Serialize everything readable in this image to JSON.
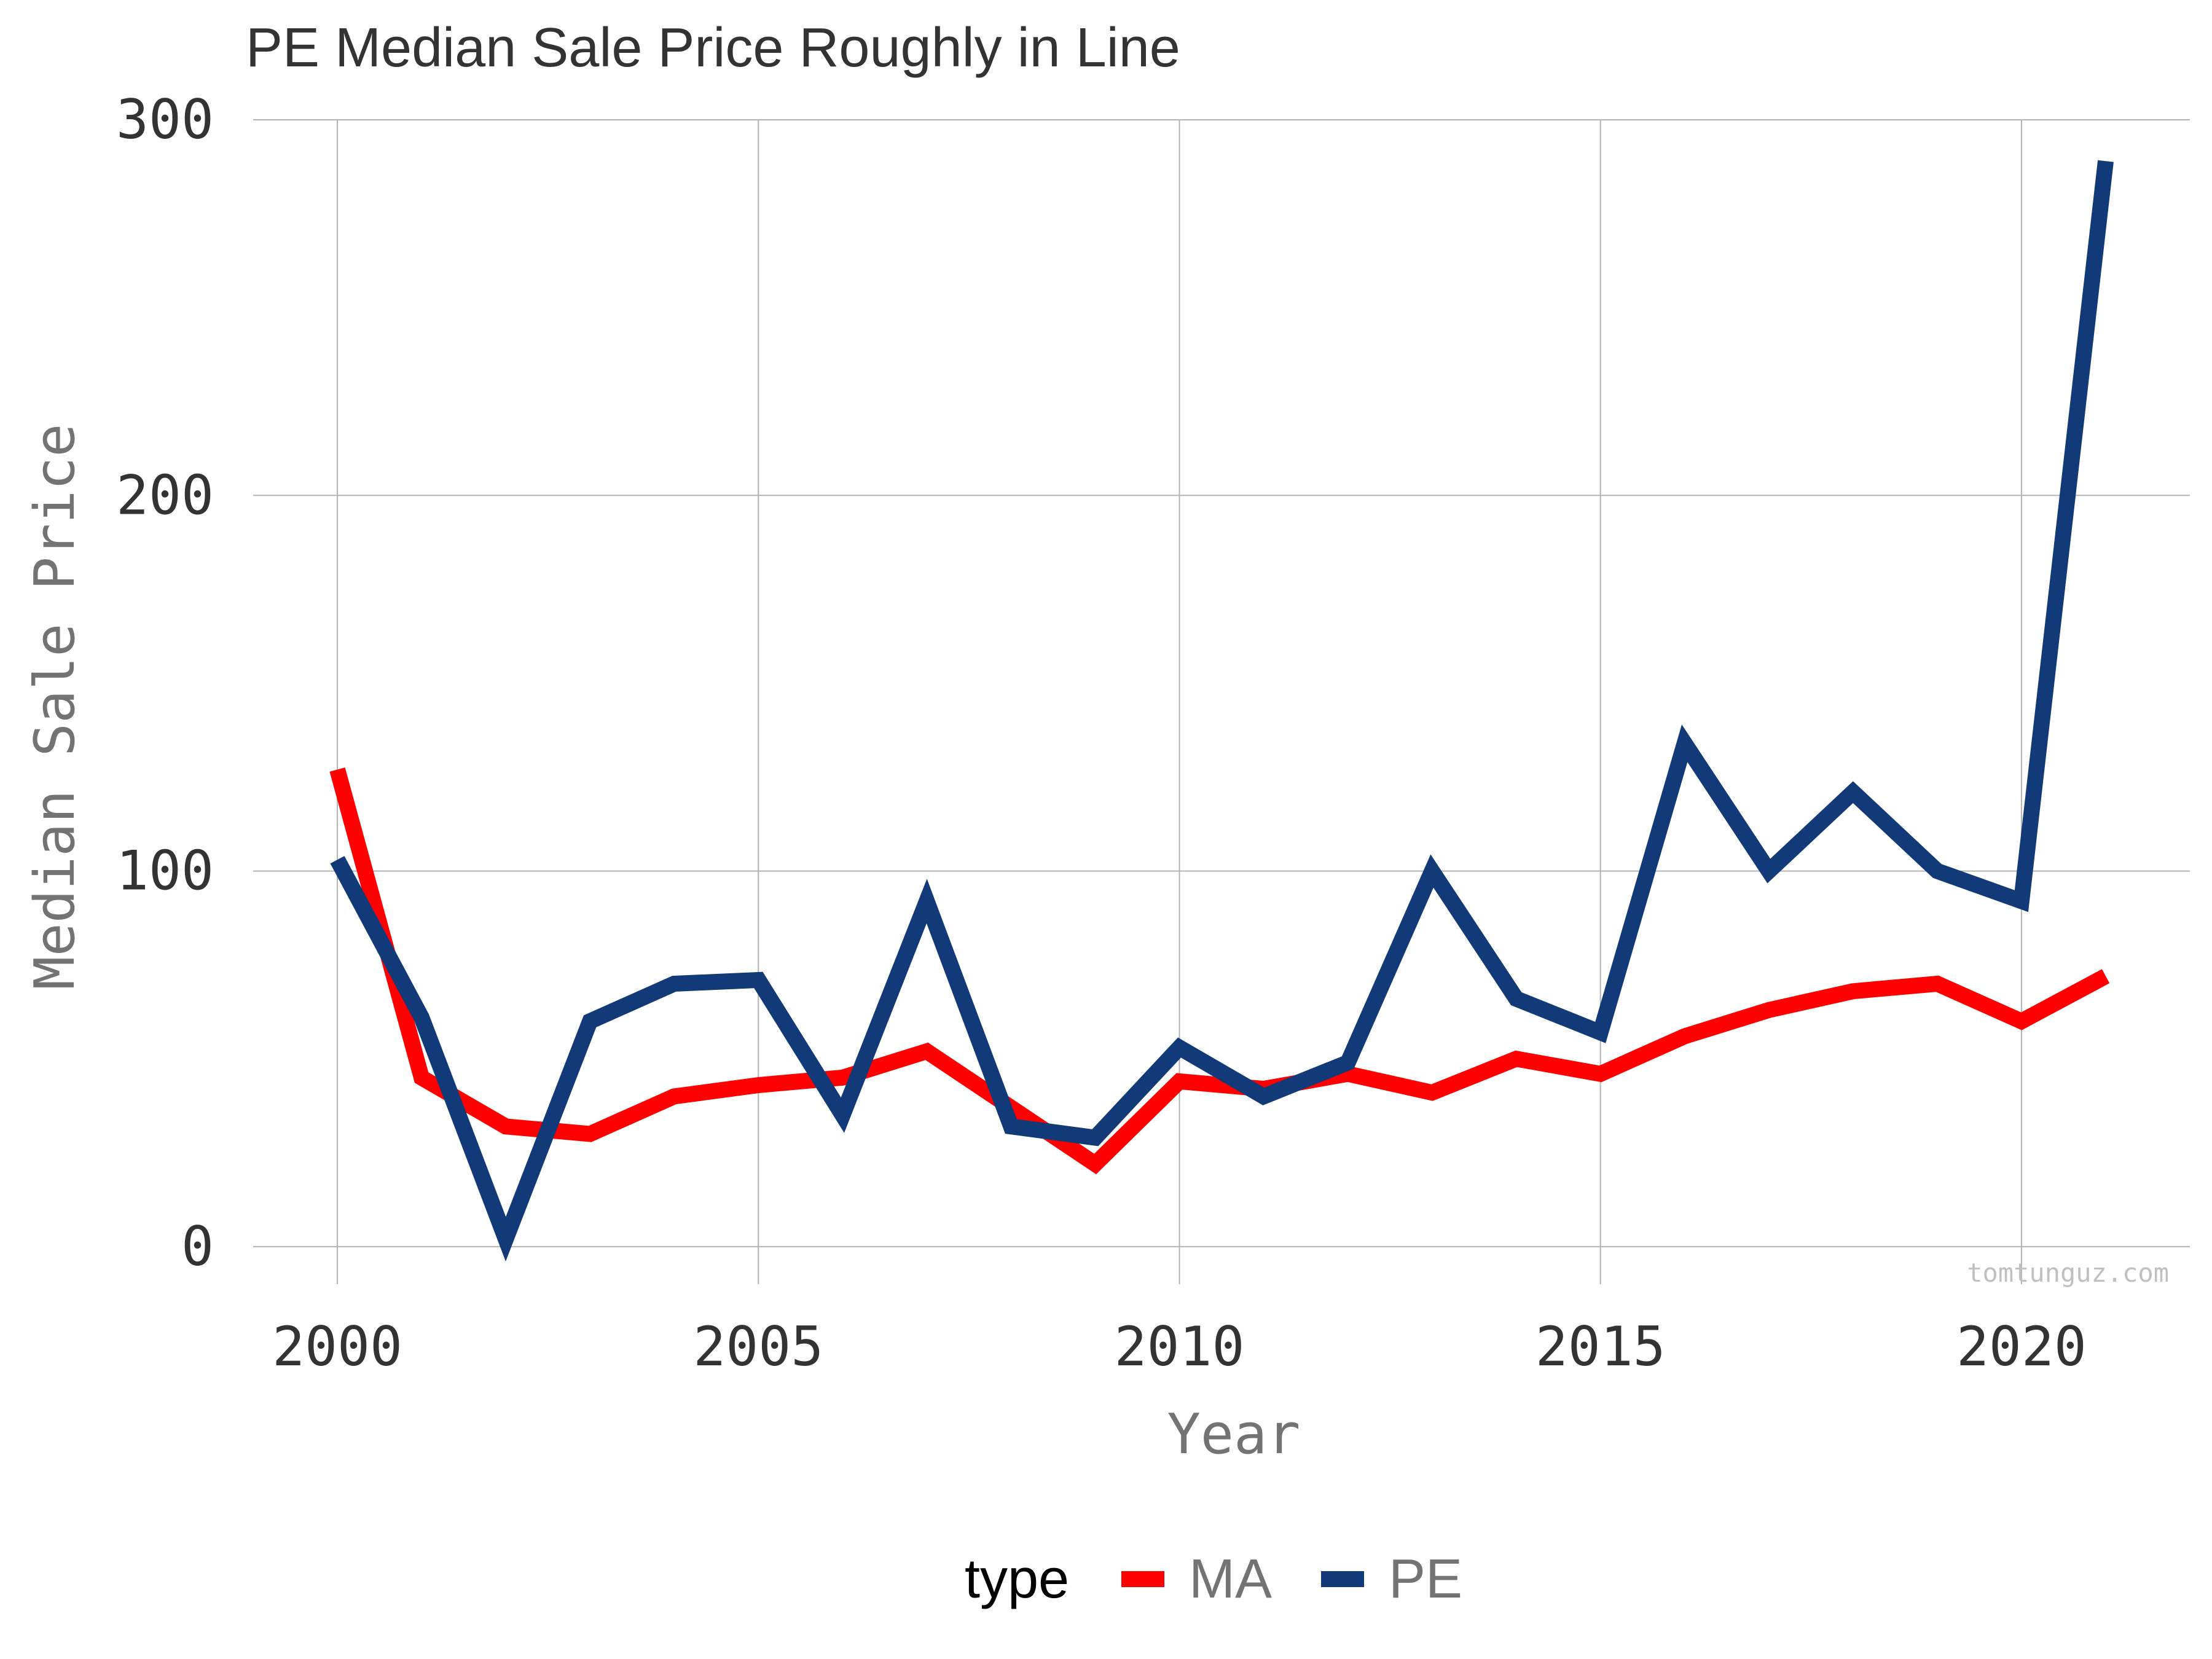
{
  "chart_data": {
    "type": "line",
    "title": "PE Median Sale Price Roughly in Line",
    "xlabel": "Year",
    "ylabel": "Median Sale Price",
    "xlim": [
      1999,
      2022
    ],
    "ylim": [
      -10,
      300
    ],
    "x_ticks": [
      2000,
      2005,
      2010,
      2015,
      2020
    ],
    "y_ticks": [
      0,
      100,
      200,
      300
    ],
    "grid": true,
    "legend": {
      "title": "type",
      "position": "bottom"
    },
    "watermark": "tomtunguz.com",
    "series": [
      {
        "name": "MA",
        "color": "#ff0000",
        "x": [
          2000,
          2001,
          2002,
          2003,
          2004,
          2005,
          2006,
          2007,
          2008,
          2009,
          2010,
          2011,
          2012,
          2013,
          2014,
          2015,
          2016,
          2017,
          2018,
          2019,
          2020,
          2021
        ],
        "values": [
          127,
          45,
          32,
          30,
          40,
          43,
          45,
          52,
          37,
          22,
          44,
          42,
          46,
          41,
          50,
          46,
          56,
          63,
          68,
          70,
          60,
          72
        ]
      },
      {
        "name": "PE",
        "color": "#123a78",
        "x": [
          2000,
          2001,
          2002,
          2003,
          2004,
          2005,
          2006,
          2007,
          2008,
          2009,
          2010,
          2011,
          2012,
          2013,
          2014,
          2015,
          2016,
          2017,
          2018,
          2019,
          2020,
          2021
        ],
        "values": [
          103,
          61,
          2,
          60,
          70,
          71,
          35,
          92,
          32,
          29,
          53,
          40,
          49,
          100,
          66,
          57,
          134,
          100,
          121,
          100,
          92,
          289
        ]
      }
    ]
  }
}
